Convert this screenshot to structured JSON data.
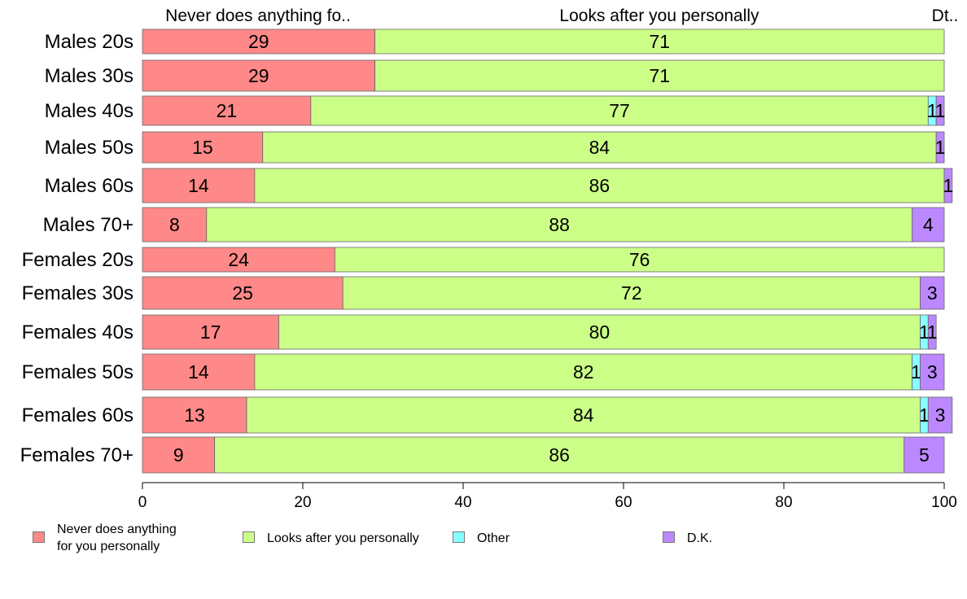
{
  "chart_data": {
    "type": "bar",
    "orientation": "horizontal",
    "stacked": true,
    "categories": [
      "Males 20s",
      "Males 30s",
      "Males 40s",
      "Males 50s",
      "Males 60s",
      "Males 70+",
      "Females 20s",
      "Females 30s",
      "Females 40s",
      "Females 50s",
      "Females 60s",
      "Females 70+"
    ],
    "series": [
      {
        "name": "Never does anything for you personally",
        "color": "#ff8888",
        "values": [
          29,
          29,
          21,
          15,
          14,
          8,
          24,
          25,
          17,
          14,
          13,
          9
        ]
      },
      {
        "name": "Looks after you personally",
        "color": "#ccff88",
        "values": [
          71,
          71,
          77,
          84,
          86,
          88,
          76,
          72,
          80,
          82,
          84,
          86
        ]
      },
      {
        "name": "Other",
        "color": "#88ffff",
        "values": [
          0,
          0,
          1,
          0,
          0,
          0,
          0,
          0,
          1,
          1,
          1,
          0
        ]
      },
      {
        "name": "D.K.",
        "color": "#bb88ff",
        "values": [
          0,
          0,
          1,
          1,
          1,
          4,
          0,
          3,
          1,
          3,
          3,
          5
        ]
      }
    ],
    "data_labels": [
      [
        "29",
        "71",
        "",
        ""
      ],
      [
        "29",
        "71",
        "",
        ""
      ],
      [
        "21",
        "77",
        "1",
        "1"
      ],
      [
        "15",
        "84",
        "",
        "1"
      ],
      [
        "14",
        "86",
        "",
        "1"
      ],
      [
        "8",
        "88",
        "",
        "4"
      ],
      [
        "24",
        "76",
        "",
        ""
      ],
      [
        "25",
        "72",
        "",
        "3"
      ],
      [
        "17",
        "80",
        "1",
        "1"
      ],
      [
        "14",
        "82",
        "1",
        "3"
      ],
      [
        "13",
        "84",
        "1",
        "3"
      ],
      [
        "9",
        "86",
        "",
        "5"
      ]
    ],
    "top_labels": [
      "Never does anything fo..",
      "Looks after you personally",
      "Dt.."
    ],
    "xlim": [
      0,
      100
    ],
    "xticks": [
      "0",
      "20",
      "40",
      "60",
      "80",
      "100"
    ],
    "legend_position": "bottom",
    "grid": false
  },
  "legend": {
    "items": [
      {
        "label": "Never does anything\nfor you personally",
        "color": "#ff8888"
      },
      {
        "label": "Looks after you personally",
        "color": "#ccff88"
      },
      {
        "label": "Other",
        "color": "#88ffff"
      },
      {
        "label": "D.K.",
        "color": "#bb88ff"
      }
    ]
  }
}
